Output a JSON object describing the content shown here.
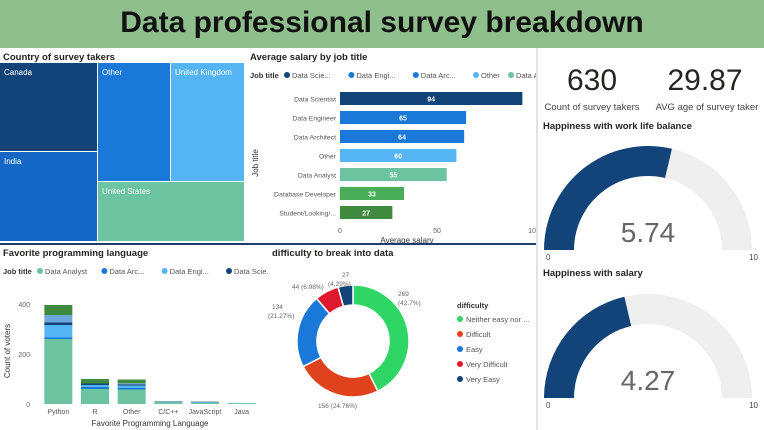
{
  "title": "Data professional survey breakdown",
  "cards": {
    "count_value": "630",
    "count_label": "Count of survey takers",
    "age_value": "29.87",
    "age_label": "AVG age of survey taker"
  },
  "colors": {
    "header_bg": "#8fbf8c",
    "navy": "#12447a",
    "blue": "#1a78d8",
    "light_blue": "#54b4f4",
    "mid_blue": "#1f6fd0",
    "teal": "#6cc3a0",
    "green": "#4aad59",
    "dark_green": "#3f8a3f",
    "gauge_track": "#efefef"
  },
  "treemap": {
    "title": "Country of survey takers",
    "tiles": [
      {
        "label": "Canada",
        "color": "#12447a"
      },
      {
        "label": "Other",
        "color": "#1a78d8"
      },
      {
        "label": "United Kingdom",
        "color": "#54b4f4"
      },
      {
        "label": "India",
        "color": "#1467c4"
      },
      {
        "label": "United States",
        "color": "#6cc3a0"
      }
    ]
  },
  "salary_chart": {
    "title": "Average salary by job title",
    "legend_title": "Job title",
    "legend": [
      {
        "label": "Data Scie...",
        "color": "#12447a"
      },
      {
        "label": "Data Engi...",
        "color": "#1a78d8"
      },
      {
        "label": "Data Arc...",
        "color": "#1a78d8"
      },
      {
        "label": "Other",
        "color": "#54b4f4"
      },
      {
        "label": "Data Anal...",
        "color": "#6cc3a0"
      }
    ],
    "xlabel": "Average salary",
    "ylabel": "Job title"
  },
  "language_chart": {
    "title": "Favorite programming language",
    "legend_title": "Job title",
    "legend": [
      {
        "label": "Data Analyst",
        "color": "#6cc3a0"
      },
      {
        "label": "Data Arc...",
        "color": "#1a78d8"
      },
      {
        "label": "Data Engi...",
        "color": "#54b4f4"
      },
      {
        "label": "Data Scie...",
        "color": "#12447a"
      }
    ],
    "xlabel": "Favorite Programming Language",
    "ylabel": "Count of voters"
  },
  "donut_chart": {
    "title": "difficulty to break into data",
    "legend_title": "difficulty",
    "legend": [
      {
        "label": "Neither easy nor ...",
        "color": "#2fd565"
      },
      {
        "label": "Difficult",
        "color": "#e0421d"
      },
      {
        "label": "Easy",
        "color": "#1a78d8"
      },
      {
        "label": "Very Difficult",
        "color": "#e0182d"
      },
      {
        "label": "Very Easy",
        "color": "#12447a"
      }
    ]
  },
  "gauges": [
    {
      "title": "Happiness with work life balance",
      "min_label": "0",
      "max_label": "10",
      "value_label": "5.74"
    },
    {
      "title": "Happiness with salary",
      "min_label": "0",
      "max_label": "10",
      "value_label": "4.27"
    }
  ],
  "chart_data": [
    {
      "type": "treemap",
      "title": "Country of survey takers",
      "categories": [
        "Canada",
        "Other",
        "United Kingdom",
        "India",
        "United States"
      ]
    },
    {
      "type": "bar",
      "orientation": "horizontal",
      "title": "Average salary by job title",
      "categories": [
        "Data Scientist",
        "Data Engineer",
        "Data Architect",
        "Other",
        "Data Analyst",
        "Database Developer",
        "Student/Looking/..."
      ],
      "values": [
        94,
        65,
        64,
        60,
        55,
        33,
        27
      ],
      "colors": [
        "#12447a",
        "#1a78d8",
        "#1a78d8",
        "#54b4f4",
        "#6cc3a0",
        "#4aad59",
        "#3f8a3f"
      ],
      "xlabel": "Average salary",
      "ylabel": "Job title",
      "xlim": [
        0,
        100
      ],
      "xticks": [
        "0",
        "50",
        "100"
      ]
    },
    {
      "type": "bar",
      "stacked": true,
      "title": "Favorite programming language",
      "categories": [
        "Python",
        "R",
        "Other",
        "C/C++",
        "JavaScript",
        "Java"
      ],
      "series": [
        {
          "name": "Data Analyst",
          "color": "#6cc3a0",
          "values": [
            260,
            60,
            58,
            6,
            5,
            3
          ]
        },
        {
          "name": "Data Arc...",
          "color": "#1a78d8",
          "values": [
            6,
            8,
            6,
            1,
            1,
            0
          ]
        },
        {
          "name": "Data Engi...",
          "color": "#54b4f4",
          "values": [
            50,
            8,
            10,
            2,
            2,
            1
          ]
        },
        {
          "name": "Data Scie...",
          "color": "#12447a",
          "values": [
            10,
            6,
            5,
            1,
            1,
            0
          ]
        },
        {
          "name": "",
          "color": "#6fa8dc",
          "values": [
            30,
            0,
            4,
            0,
            0,
            0
          ]
        },
        {
          "name": "",
          "color": "#3f8a3f",
          "values": [
            40,
            18,
            15,
            1,
            1,
            0
          ]
        }
      ],
      "xlabel": "Favorite Programming Language",
      "ylabel": "Count of voters",
      "ylim": [
        0,
        420
      ],
      "yticks": [
        "0",
        "200",
        "400"
      ]
    },
    {
      "type": "pie",
      "donut": true,
      "title": "difficulty to break into data",
      "categories": [
        "Neither easy nor difficult",
        "Difficult",
        "Easy",
        "Very Difficult",
        "Very Easy"
      ],
      "values": [
        269,
        156,
        134,
        44,
        27
      ],
      "colors": [
        "#2fd565",
        "#e0421d",
        "#1a78d8",
        "#e0182d",
        "#12447a"
      ],
      "data_labels": [
        "269 (42.7%)",
        "156 (24.76%)",
        "134 (21.27%)",
        "44 (6.98%)",
        "27 (4.29%)"
      ]
    },
    {
      "type": "gauge",
      "title": "Happiness with work life balance",
      "value": 5.74,
      "min": 0,
      "max": 10
    },
    {
      "type": "gauge",
      "title": "Happiness with salary",
      "value": 4.27,
      "min": 0,
      "max": 10
    }
  ]
}
